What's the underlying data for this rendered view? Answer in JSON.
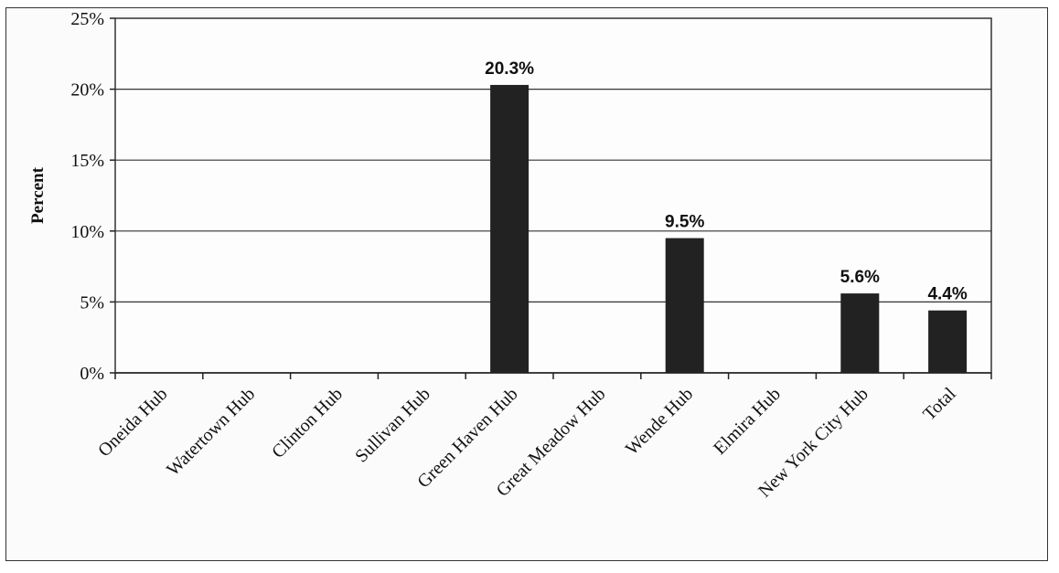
{
  "chart_data": {
    "type": "bar",
    "title": "",
    "xlabel": "",
    "ylabel": "Percent",
    "ylim": [
      0,
      25
    ],
    "yticks": [
      "0%",
      "5%",
      "10%",
      "15%",
      "20%",
      "25%"
    ],
    "ytick_values": [
      0,
      5,
      10,
      15,
      20,
      25
    ],
    "grid": true,
    "legend": "none",
    "bar_color": "#222222",
    "categories": [
      "Oneida Hub",
      "Watertown Hub",
      "Clinton Hub",
      "Sullivan Hub",
      "Green Haven Hub",
      "Great Meadow Hub",
      "Wende Hub",
      "Elmira Hub",
      "New York City Hub",
      "Total"
    ],
    "values": [
      0,
      0,
      0,
      0,
      20.3,
      0,
      9.5,
      0,
      5.6,
      4.4
    ],
    "data_labels": [
      "",
      "",
      "",
      "",
      "20.3%",
      "",
      "9.5%",
      "",
      "5.6%",
      "4.4%"
    ]
  }
}
